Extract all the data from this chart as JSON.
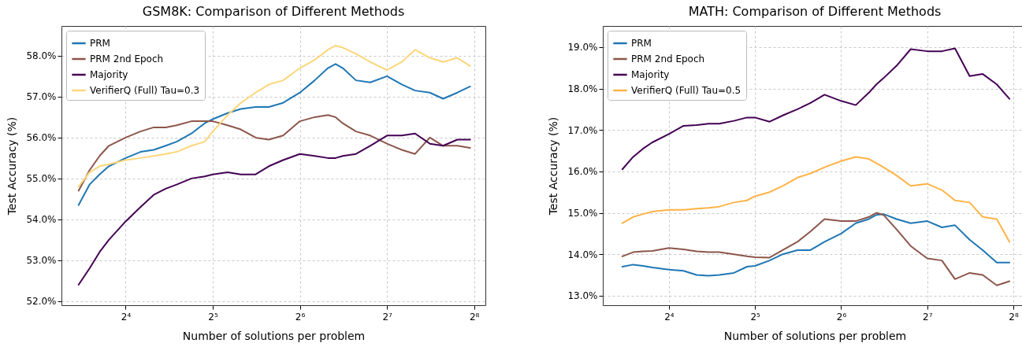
{
  "chart_data": [
    {
      "type": "line",
      "title": "GSM8K: Comparison of Different Methods",
      "xlabel": "Number of solutions per problem",
      "ylabel": "Test Accuracy (%)",
      "log": "x",
      "grid": true,
      "legend": "top left",
      "line_style": "solid",
      "x": [
        11,
        12,
        13,
        14,
        16,
        18,
        20,
        22,
        24,
        27,
        30,
        32,
        36,
        40,
        45,
        50,
        56,
        64,
        72,
        80,
        85,
        90,
        100,
        112,
        128,
        144,
        160,
        180,
        200,
        224,
        248
      ],
      "xlim": [
        9.6,
        280
      ],
      "ylim": [
        51.9,
        58.73
      ],
      "xticks": [
        {
          "value": 16,
          "label": "2⁴"
        },
        {
          "value": 32,
          "label": "2⁵"
        },
        {
          "value": 64,
          "label": "2⁶"
        },
        {
          "value": 128,
          "label": "2⁷"
        },
        {
          "value": 256,
          "label": "2⁸"
        }
      ],
      "yticks": [
        {
          "value": 52,
          "label": "52.0%"
        },
        {
          "value": 53,
          "label": "53.0%"
        },
        {
          "value": 54,
          "label": "54.0%"
        },
        {
          "value": 55,
          "label": "55.0%"
        },
        {
          "value": 56,
          "label": "56.0%"
        },
        {
          "value": 57,
          "label": "57.0%"
        },
        {
          "value": 58,
          "label": "58.0%"
        }
      ],
      "series": [
        {
          "name": "PRM",
          "color": "#1f77b4",
          "values": [
            54.35,
            54.85,
            55.1,
            55.3,
            55.5,
            55.65,
            55.7,
            55.8,
            55.9,
            56.1,
            56.35,
            56.45,
            56.6,
            56.7,
            56.75,
            56.75,
            56.85,
            57.1,
            57.4,
            57.7,
            57.8,
            57.7,
            57.4,
            57.35,
            57.5,
            57.3,
            57.15,
            57.1,
            56.95,
            57.1,
            57.25
          ]
        },
        {
          "name": "PRM 2nd Epoch",
          "color": "#8c564b",
          "values": [
            54.7,
            55.2,
            55.55,
            55.8,
            56.0,
            56.15,
            56.25,
            56.25,
            56.3,
            56.4,
            56.4,
            56.4,
            56.3,
            56.2,
            56.0,
            55.95,
            56.05,
            56.4,
            56.5,
            56.55,
            56.5,
            56.35,
            56.15,
            56.05,
            55.85,
            55.7,
            55.6,
            56.0,
            55.8,
            55.8,
            55.75
          ]
        },
        {
          "name": "Majority",
          "color": "#440154",
          "values": [
            52.4,
            52.8,
            53.2,
            53.5,
            53.95,
            54.3,
            54.6,
            54.75,
            54.85,
            55.0,
            55.05,
            55.1,
            55.15,
            55.1,
            55.1,
            55.3,
            55.45,
            55.6,
            55.55,
            55.5,
            55.5,
            55.55,
            55.6,
            55.8,
            56.05,
            56.05,
            56.1,
            55.85,
            55.8,
            55.95,
            55.95
          ]
        },
        {
          "name": "VerifierQ (Full) Tau=0.3",
          "color": "#fdd67a",
          "values": [
            54.8,
            55.15,
            55.3,
            55.35,
            55.45,
            55.5,
            55.55,
            55.6,
            55.65,
            55.8,
            55.9,
            56.15,
            56.55,
            56.85,
            57.1,
            57.3,
            57.4,
            57.7,
            57.9,
            58.15,
            58.25,
            58.2,
            58.05,
            57.85,
            57.65,
            57.85,
            58.15,
            57.95,
            57.85,
            57.95,
            57.75
          ]
        }
      ]
    },
    {
      "type": "line",
      "title": "MATH: Comparison of Different Methods",
      "xlabel": "Number of solutions per problem",
      "ylabel": "Test Accuracy (%)",
      "log": "x",
      "grid": true,
      "legend": "top left",
      "line_style": "solid",
      "x": [
        11,
        12,
        13,
        14,
        16,
        18,
        20,
        22,
        24,
        27,
        30,
        32,
        36,
        40,
        45,
        50,
        56,
        64,
        72,
        80,
        85,
        90,
        100,
        112,
        128,
        144,
        160,
        180,
        200,
        224,
        248
      ],
      "xlim": [
        9.4,
        285
      ],
      "ylim": [
        12.77,
        19.51
      ],
      "xticks": [
        {
          "value": 16,
          "label": "2⁴"
        },
        {
          "value": 32,
          "label": "2⁵"
        },
        {
          "value": 64,
          "label": "2⁶"
        },
        {
          "value": 128,
          "label": "2⁷"
        },
        {
          "value": 256,
          "label": "2⁸"
        }
      ],
      "yticks": [
        {
          "value": 13,
          "label": "13.0%"
        },
        {
          "value": 14,
          "label": "14.0%"
        },
        {
          "value": 15,
          "label": "15.0%"
        },
        {
          "value": 16,
          "label": "16.0%"
        },
        {
          "value": 17,
          "label": "17.0%"
        },
        {
          "value": 18,
          "label": "18.0%"
        },
        {
          "value": 19,
          "label": "19.0%"
        }
      ],
      "series": [
        {
          "name": "PRM",
          "color": "#1f77b4",
          "values": [
            13.7,
            13.75,
            13.72,
            13.68,
            13.63,
            13.6,
            13.5,
            13.48,
            13.5,
            13.55,
            13.7,
            13.72,
            13.85,
            14.0,
            14.1,
            14.1,
            14.3,
            14.5,
            14.75,
            14.85,
            14.95,
            14.97,
            14.85,
            14.75,
            14.8,
            14.65,
            14.7,
            14.35,
            14.1,
            13.8,
            13.8
          ]
        },
        {
          "name": "PRM 2nd Epoch",
          "color": "#8c564b",
          "values": [
            13.95,
            14.05,
            14.07,
            14.08,
            14.15,
            14.12,
            14.07,
            14.05,
            14.05,
            14.0,
            13.95,
            13.93,
            13.92,
            14.1,
            14.3,
            14.55,
            14.85,
            14.8,
            14.8,
            14.9,
            15.0,
            14.95,
            14.6,
            14.2,
            13.9,
            13.85,
            13.4,
            13.55,
            13.5,
            13.25,
            13.35
          ]
        },
        {
          "name": "Majority",
          "color": "#440154",
          "values": [
            16.05,
            16.35,
            16.55,
            16.7,
            16.9,
            17.1,
            17.12,
            17.15,
            17.15,
            17.22,
            17.3,
            17.3,
            17.2,
            17.35,
            17.5,
            17.65,
            17.85,
            17.7,
            17.6,
            17.9,
            18.1,
            18.25,
            18.55,
            18.95,
            18.9,
            18.9,
            18.97,
            18.3,
            18.35,
            18.1,
            17.75
          ]
        },
        {
          "name": "VerifierQ (Full) Tau=0.5",
          "color": "#ffb347",
          "values": [
            14.75,
            14.9,
            14.97,
            15.03,
            15.07,
            15.07,
            15.1,
            15.12,
            15.15,
            15.25,
            15.3,
            15.4,
            15.5,
            15.65,
            15.85,
            15.95,
            16.1,
            16.25,
            16.35,
            16.3,
            16.2,
            16.1,
            15.9,
            15.65,
            15.7,
            15.55,
            15.3,
            15.25,
            14.9,
            14.85,
            14.3
          ]
        }
      ]
    }
  ]
}
